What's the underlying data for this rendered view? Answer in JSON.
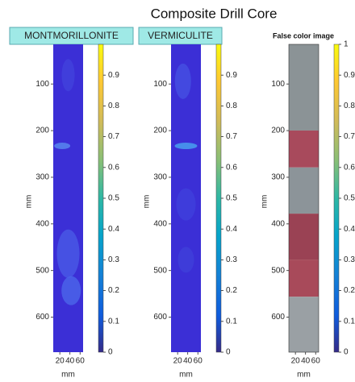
{
  "figure_title": "Composite Drill Core",
  "chart_data": [
    {
      "type": "heatmap",
      "title": "MONTMORILLONITE",
      "ylabel": "mm",
      "xlabel": "mm",
      "ylim": [
        15,
        675
      ],
      "yticks": [
        100,
        200,
        300,
        400,
        500,
        600
      ],
      "xlim": [
        7,
        66
      ],
      "xticks": [
        20,
        40,
        60
      ],
      "colorbar": {
        "lim": [
          0,
          1
        ],
        "ticks": [
          0,
          0.1,
          0.2,
          0.3,
          0.4,
          0.5,
          0.6,
          0.7,
          0.8,
          0.9
        ]
      }
    },
    {
      "type": "heatmap",
      "title": "VERMICULITE",
      "ylabel": "mm",
      "xlabel": "mm",
      "ylim": [
        15,
        675
      ],
      "yticks": [
        100,
        200,
        300,
        400,
        500,
        600
      ],
      "xlim": [
        7,
        66
      ],
      "xticks": [
        20,
        40,
        60
      ],
      "colorbar": {
        "lim": [
          0,
          1
        ],
        "ticks": [
          0,
          0.1,
          0.2,
          0.3,
          0.4,
          0.5,
          0.6,
          0.7,
          0.8,
          0.9
        ]
      }
    },
    {
      "type": "image",
      "title": "False color image",
      "ylabel": "mm",
      "xlabel": "mm",
      "ylim": [
        15,
        675
      ],
      "yticks": [
        100,
        200,
        300,
        400,
        500,
        600
      ],
      "xlim": [
        7,
        66
      ],
      "xticks": [
        20,
        40,
        60
      ],
      "colorbar": {
        "lim": [
          0,
          1
        ],
        "ticks": [
          0,
          0.1,
          0.2,
          0.3,
          0.4,
          0.5,
          0.6,
          0.7,
          0.8,
          0.9,
          1
        ]
      }
    }
  ]
}
